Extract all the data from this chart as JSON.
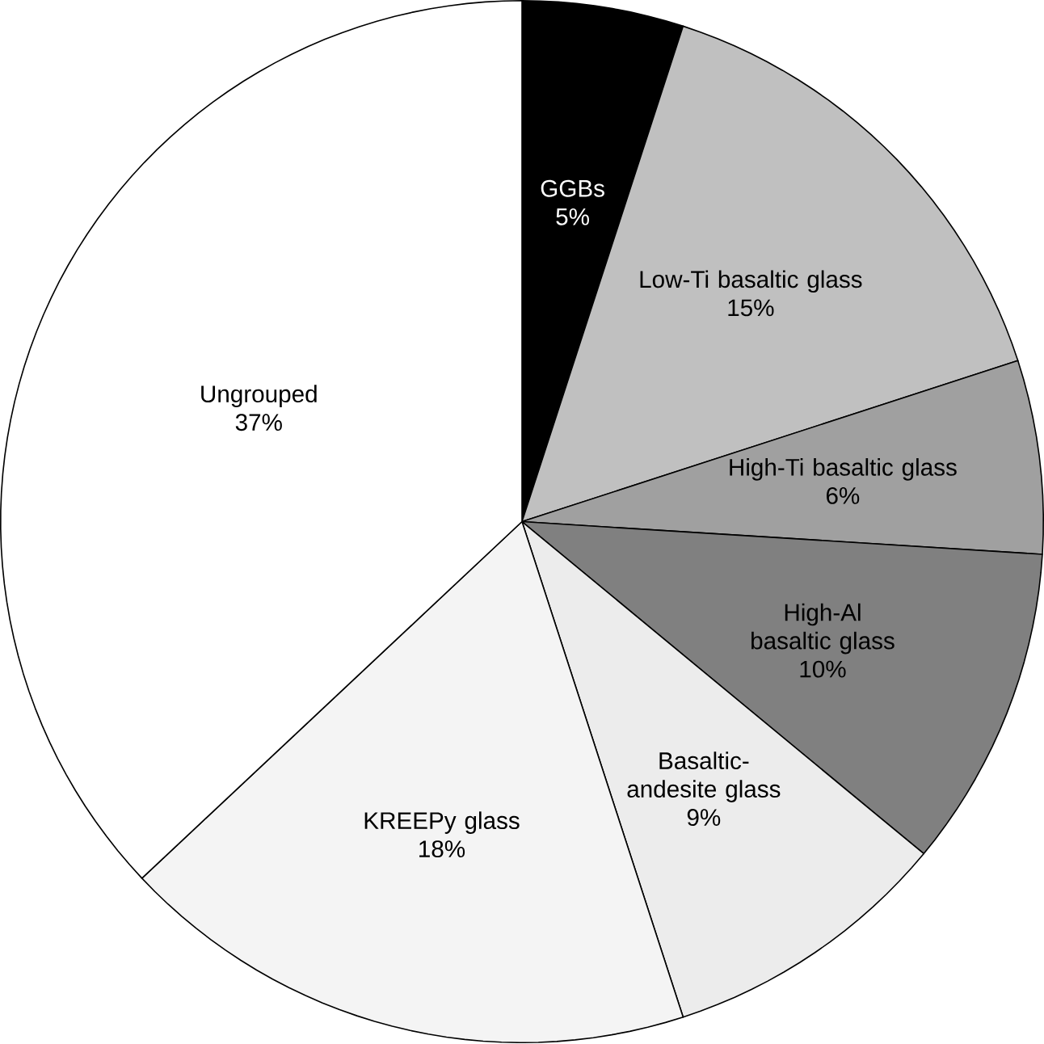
{
  "chart_data": {
    "type": "pie",
    "categories": [
      "GGBs",
      "Low-Ti basaltic glass",
      "High-Ti basaltic glass",
      "High-Al basaltic glass",
      "Basaltic-andesite glass",
      "KREEPy glass",
      "Ungrouped"
    ],
    "values": [
      5,
      15,
      6,
      10,
      9,
      18,
      37
    ],
    "value_labels": [
      "5%",
      "15%",
      "6%",
      "10%",
      "9%",
      "18%",
      "37%"
    ],
    "colors": [
      "#000000",
      "#c0c0c0",
      "#a0a0a0",
      "#808080",
      "#ececec",
      "#f4f4f4",
      "#ffffff"
    ]
  }
}
